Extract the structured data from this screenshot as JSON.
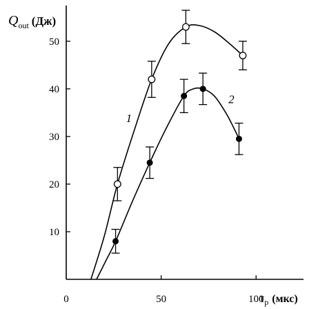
{
  "chart_data": {
    "type": "scatter",
    "y_axis": {
      "symbol": "Q",
      "subscript": "out",
      "unit": "(Дж)"
    },
    "x_axis": {
      "symbol": "τ",
      "subscript": "p",
      "unit": "(мкс)"
    },
    "xlim": [
      0,
      125
    ],
    "ylim": [
      0,
      57.5
    ],
    "x_ticks": [
      0,
      50,
      100
    ],
    "x_tick_labels": [
      "0",
      "50",
      "100"
    ],
    "y_ticks": [
      10,
      20,
      30,
      40,
      50
    ],
    "y_tick_labels": [
      "10",
      "20",
      "30",
      "40",
      "50"
    ],
    "grid": false,
    "series": [
      {
        "name": "1",
        "marker": "open-circle",
        "points": [
          {
            "x": 27,
            "y": 20,
            "err": 3.5
          },
          {
            "x": 45,
            "y": 42,
            "err": 3.8
          },
          {
            "x": 63,
            "y": 53,
            "err": 3.5
          },
          {
            "x": 93,
            "y": 47,
            "err": 3
          }
        ],
        "curve": [
          [
            13,
            0
          ],
          [
            20,
            9
          ],
          [
            27,
            20
          ],
          [
            36,
            31.5
          ],
          [
            45,
            42
          ],
          [
            54,
            49.5
          ],
          [
            63,
            53
          ],
          [
            70,
            53.3
          ],
          [
            78,
            52
          ],
          [
            86,
            49.5
          ],
          [
            93,
            47
          ]
        ],
        "label_pos": [
          33,
          33
        ]
      },
      {
        "name": "2",
        "marker": "filled-circle",
        "points": [
          {
            "x": 26,
            "y": 8,
            "err": 2.5
          },
          {
            "x": 44,
            "y": 24.5,
            "err": 3.3
          },
          {
            "x": 62,
            "y": 38.5,
            "err": 3.5
          },
          {
            "x": 72,
            "y": 40,
            "err": 3.3
          },
          {
            "x": 91,
            "y": 29.5,
            "err": 3.3
          }
        ],
        "curve": [
          [
            16,
            0
          ],
          [
            21,
            4
          ],
          [
            26,
            8
          ],
          [
            35,
            16.5
          ],
          [
            44,
            24.5
          ],
          [
            53,
            32
          ],
          [
            62,
            38.5
          ],
          [
            67,
            40
          ],
          [
            72,
            40
          ],
          [
            78,
            38.5
          ],
          [
            84,
            35
          ],
          [
            88,
            32
          ],
          [
            91,
            29.5
          ]
        ],
        "label_pos": [
          87,
          37
        ]
      }
    ]
  }
}
